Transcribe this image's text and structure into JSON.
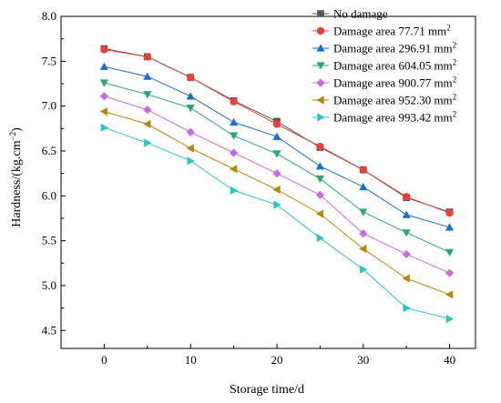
{
  "chart_data": {
    "type": "line",
    "title": "",
    "xlabel": "Storage time/d",
    "ylabel": "Hardness/(kg.cm",
    "ylabel_sup": "−2",
    "ylabel_close": ")",
    "xlim": [
      -5,
      43
    ],
    "ylim": [
      4.3,
      8.0
    ],
    "xticks": [
      0,
      10,
      20,
      30,
      40
    ],
    "yticks": [
      4.5,
      5.0,
      5.5,
      6.0,
      6.5,
      7.0,
      7.5,
      8.0
    ],
    "ytick_labels": [
      "4.5",
      "5.0",
      "5.5",
      "6.0",
      "6.5",
      "7.0",
      "7.5",
      "8.0"
    ],
    "grid": false,
    "legend_position": "top-right",
    "x": [
      0,
      5,
      10,
      15,
      20,
      25,
      30,
      35,
      40
    ],
    "series": [
      {
        "name": "No damage",
        "unit": "",
        "color": "#555555",
        "marker": "square",
        "values": [
          7.64,
          7.55,
          7.32,
          7.06,
          6.83,
          6.54,
          6.29,
          5.98,
          5.82
        ]
      },
      {
        "name": "Damage area 77.71  mm",
        "unit": "2",
        "color": "#e8413a",
        "marker": "circle",
        "values": [
          7.63,
          7.55,
          7.32,
          7.05,
          6.8,
          6.55,
          6.29,
          5.99,
          5.81
        ]
      },
      {
        "name": "Damage area 296.91 mm",
        "unit": "2",
        "color": "#1c6fd1",
        "marker": "triangle-up",
        "values": [
          7.44,
          7.33,
          7.11,
          6.82,
          6.66,
          6.33,
          6.1,
          5.79,
          5.65
        ]
      },
      {
        "name": "Damage area 604.05 mm",
        "unit": "2",
        "color": "#2aa876",
        "marker": "triangle-down",
        "values": [
          7.26,
          7.13,
          6.98,
          6.67,
          6.47,
          6.19,
          5.82,
          5.59,
          5.37
        ]
      },
      {
        "name": "Damage area 900.77 mm",
        "unit": "2",
        "color": "#c96ae0",
        "marker": "diamond",
        "values": [
          7.11,
          6.96,
          6.71,
          6.48,
          6.25,
          6.01,
          5.58,
          5.35,
          5.14
        ]
      },
      {
        "name": "Damage area 952.30 mm",
        "unit": "2",
        "color": "#b8860b",
        "marker": "triangle-left",
        "values": [
          6.94,
          6.8,
          6.53,
          6.3,
          6.07,
          5.8,
          5.41,
          5.08,
          4.9
        ]
      },
      {
        "name": "Damage area 993.42 mm",
        "unit": "2",
        "color": "#2ec4c4",
        "marker": "triangle-right",
        "values": [
          6.76,
          6.59,
          6.39,
          6.06,
          5.9,
          5.53,
          5.18,
          4.75,
          4.63
        ]
      }
    ]
  }
}
